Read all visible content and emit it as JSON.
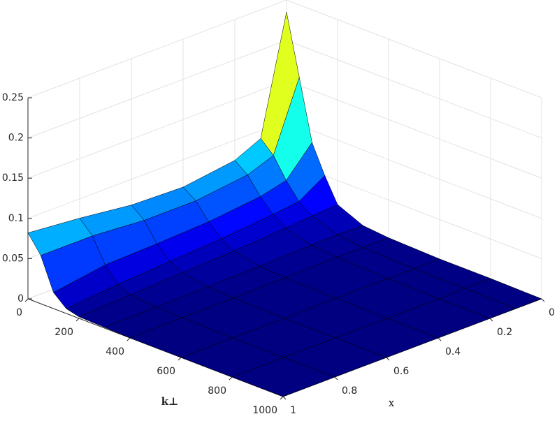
{
  "chart_data": {
    "type": "surface",
    "xlabel": "x",
    "ylabel": "k⊥",
    "x": [
      0,
      0.1,
      0.2,
      0.4,
      0.6,
      0.8,
      1
    ],
    "k": [
      0,
      50,
      100,
      150,
      200,
      300,
      400,
      600,
      800,
      1000
    ],
    "z": [
      [
        0.235,
        0.16,
        0.085,
        0.05,
        0.02,
        0.006,
        0.003,
        0.001,
        0.001,
        0
      ],
      [
        0.09,
        0.075,
        0.05,
        0.03,
        0.018,
        0.007,
        0.003,
        0.001,
        0.001,
        0
      ],
      [
        0.075,
        0.063,
        0.042,
        0.026,
        0.015,
        0.006,
        0.003,
        0.001,
        0,
        0
      ],
      [
        0.066,
        0.055,
        0.035,
        0.02,
        0.011,
        0.004,
        0.002,
        0.001,
        0,
        0
      ],
      [
        0.068,
        0.055,
        0.032,
        0.016,
        0.008,
        0.003,
        0.001,
        0,
        0,
        0
      ],
      [
        0.076,
        0.06,
        0.03,
        0.012,
        0.005,
        0.002,
        0.001,
        0,
        0,
        0
      ],
      [
        0.082,
        0.06,
        0.02,
        0.006,
        0.002,
        0.001,
        0,
        0,
        0,
        0
      ]
    ],
    "xlim": [
      0,
      1
    ],
    "xticks": [
      0,
      0.2,
      0.4,
      0.6,
      0.8,
      1
    ],
    "klim": [
      0,
      1000
    ],
    "kticks": [
      0,
      200,
      400,
      600,
      800,
      1000
    ],
    "zlim": [
      0,
      0.25
    ],
    "zticks": [
      0,
      0.05,
      0.1,
      0.15,
      0.2,
      0.25
    ],
    "colormap": "jet",
    "edge_color": "#000000",
    "grid": true
  }
}
